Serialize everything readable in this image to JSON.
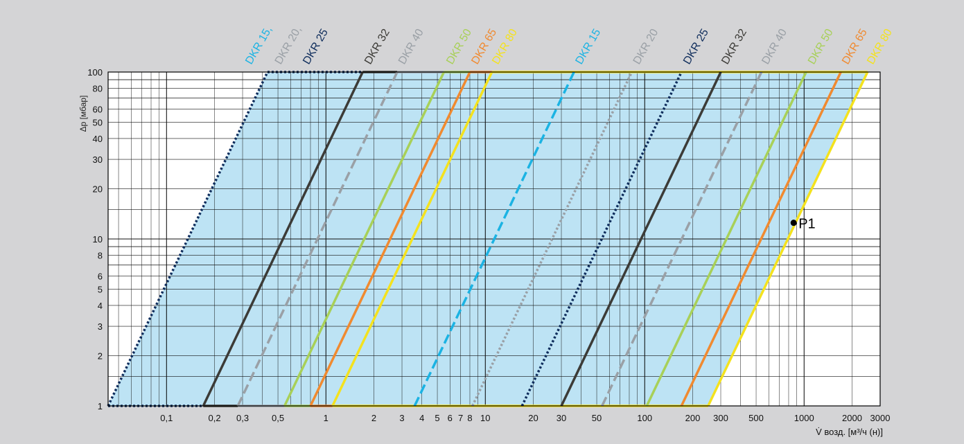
{
  "chart_data": {
    "type": "line",
    "ylabel": "Δp [мбар]",
    "xlabel": "V̇ возд. [м³/ч (н)]",
    "x_scale": "log",
    "y_scale": "log",
    "xlim": [
      0.043,
      3000
    ],
    "ylim": [
      1,
      100
    ],
    "grid": true,
    "x_ticks": [
      "0,1",
      "0,2",
      "0,3",
      "0,5",
      "1",
      "2",
      "3",
      "4",
      "5",
      "6",
      "7",
      "8",
      "10",
      "20",
      "30",
      "50",
      "100",
      "200",
      "300",
      "500",
      "1000",
      "2000",
      "3000"
    ],
    "y_ticks": [
      "1",
      "2",
      "3",
      "4",
      "5",
      "6",
      "8",
      "10",
      "20",
      "30",
      "40",
      "50",
      "60",
      "80",
      "100"
    ],
    "series": [
      {
        "name": "DKR 15, DKR 20, DKR 25",
        "color": "#0f2d5c",
        "style": "dotted",
        "points": [
          [
            0.043,
            1
          ],
          [
            0.43,
            100
          ]
        ]
      },
      {
        "name": "DKR 32",
        "color": "#3c3b37",
        "style": "solid",
        "points": [
          [
            0.17,
            1
          ],
          [
            1.7,
            100
          ]
        ]
      },
      {
        "name": "DKR 40",
        "color": "#9aa0a6",
        "style": "dashed",
        "points": [
          [
            0.28,
            1
          ],
          [
            2.8,
            100
          ]
        ]
      },
      {
        "name": "DKR 50",
        "color": "#a8d058",
        "style": "solid",
        "points": [
          [
            0.55,
            1
          ],
          [
            5.5,
            100
          ]
        ]
      },
      {
        "name": "DKR 65",
        "color": "#f08a30",
        "style": "solid",
        "points": [
          [
            0.8,
            1
          ],
          [
            8,
            100
          ]
        ]
      },
      {
        "name": "DKR 80",
        "color": "#f4e21e",
        "style": "solid",
        "points": [
          [
            1.1,
            1
          ],
          [
            11,
            100
          ]
        ]
      },
      {
        "name": "DKR 15",
        "color": "#1bb3e3",
        "style": "dashed",
        "points": [
          [
            3.6,
            1
          ],
          [
            36,
            100
          ]
        ]
      },
      {
        "name": "DKR 20",
        "color": "#9aa0a6",
        "style": "dotted",
        "points": [
          [
            8.3,
            1
          ],
          [
            83,
            100
          ]
        ]
      },
      {
        "name": "DKR 25",
        "color": "#0f2d5c",
        "style": "dotted",
        "points": [
          [
            17,
            1
          ],
          [
            170,
            100
          ]
        ]
      },
      {
        "name": "DKR 32",
        "color": "#3c3b37",
        "style": "solid",
        "points": [
          [
            30,
            1
          ],
          [
            300,
            100
          ]
        ]
      },
      {
        "name": "DKR 40",
        "color": "#9aa0a6",
        "style": "dashed",
        "points": [
          [
            54,
            1
          ],
          [
            540,
            100
          ]
        ]
      },
      {
        "name": "DKR 50",
        "color": "#a8d058",
        "style": "solid",
        "points": [
          [
            103,
            1
          ],
          [
            1030,
            100
          ]
        ]
      },
      {
        "name": "DKR 65",
        "color": "#f08a30",
        "style": "solid",
        "points": [
          [
            170,
            1
          ],
          [
            1700,
            100
          ]
        ]
      },
      {
        "name": "DKR 80",
        "color": "#f4e21e",
        "style": "solid",
        "points": [
          [
            250,
            1
          ],
          [
            2500,
            100
          ]
        ]
      }
    ],
    "bottom_lines": [
      {
        "color": "#0f2d5c",
        "style": "dotted",
        "points": [
          [
            0.043,
            1
          ],
          [
            0.17,
            1
          ]
        ]
      },
      {
        "color": "#3c3b37",
        "style": "solid",
        "points": [
          [
            0.17,
            1
          ],
          [
            0.28,
            1
          ]
        ]
      },
      {
        "color": "#9aa0a6",
        "style": "solid",
        "points": [
          [
            0.28,
            1
          ],
          [
            0.55,
            1
          ]
        ]
      },
      {
        "color": "#a8d058",
        "style": "solid",
        "points": [
          [
            0.55,
            1
          ],
          [
            0.8,
            1
          ]
        ]
      },
      {
        "color": "#f08a30",
        "style": "solid",
        "points": [
          [
            0.8,
            1
          ],
          [
            1.1,
            1
          ]
        ]
      },
      {
        "color": "#f4e21e",
        "style": "solid",
        "points": [
          [
            1.1,
            1
          ],
          [
            250,
            1
          ]
        ]
      }
    ],
    "top_lines": [
      {
        "color": "#0f2d5c",
        "style": "dotted",
        "points": [
          [
            0.43,
            100
          ],
          [
            1.7,
            100
          ]
        ]
      },
      {
        "color": "#3c3b37",
        "style": "solid",
        "points": [
          [
            1.7,
            100
          ],
          [
            2.8,
            100
          ]
        ]
      },
      {
        "color": "#9aa0a6",
        "style": "solid",
        "points": [
          [
            2.8,
            100
          ],
          [
            5.5,
            100
          ]
        ]
      },
      {
        "color": "#a8d058",
        "style": "solid",
        "points": [
          [
            5.5,
            100
          ],
          [
            8,
            100
          ]
        ]
      },
      {
        "color": "#f08a30",
        "style": "solid",
        "points": [
          [
            8,
            100
          ],
          [
            11,
            100
          ]
        ]
      },
      {
        "color": "#f4e21e",
        "style": "solid",
        "points": [
          [
            11,
            100
          ],
          [
            2500,
            100
          ]
        ]
      }
    ],
    "shaded_region": {
      "color": "#bde3f4",
      "points": [
        [
          0.043,
          1
        ],
        [
          0.43,
          100
        ],
        [
          2500,
          100
        ],
        [
          250,
          1
        ]
      ]
    },
    "labels": [
      {
        "text": "DKR 15,",
        "color": "#1bb3e3",
        "x": 0.34
      },
      {
        "text": "DKR 20,",
        "color": "#9aa0a6",
        "x": 0.52
      },
      {
        "text": "DKR 25",
        "color": "#0f2d5c",
        "x": 0.78
      },
      {
        "text": "DKR 32",
        "color": "#3c3b37",
        "x": 1.9
      },
      {
        "text": "DKR 40",
        "color": "#9aa0a6",
        "x": 3.1
      },
      {
        "text": "DKR 50",
        "color": "#a8d058",
        "x": 6.2
      },
      {
        "text": "DKR 65",
        "color": "#f08a30",
        "x": 8.9
      },
      {
        "text": "DKR 80",
        "color": "#f4e21e",
        "x": 12
      },
      {
        "text": "DKR 15",
        "color": "#1bb3e3",
        "x": 40
      },
      {
        "text": "DKR 20",
        "color": "#9aa0a6",
        "x": 92
      },
      {
        "text": "DKR 25",
        "color": "#0f2d5c",
        "x": 190
      },
      {
        "text": "DKR 32",
        "color": "#3c3b37",
        "x": 330
      },
      {
        "text": "DKR 40",
        "color": "#9aa0a6",
        "x": 590
      },
      {
        "text": "DKR 50",
        "color": "#a8d058",
        "x": 1150
      },
      {
        "text": "DKR 65",
        "color": "#f08a30",
        "x": 1880
      },
      {
        "text": "DKR 80",
        "color": "#f4e21e",
        "x": 2700
      }
    ],
    "point": {
      "label": "P1",
      "x": 860,
      "y": 12.5
    }
  }
}
